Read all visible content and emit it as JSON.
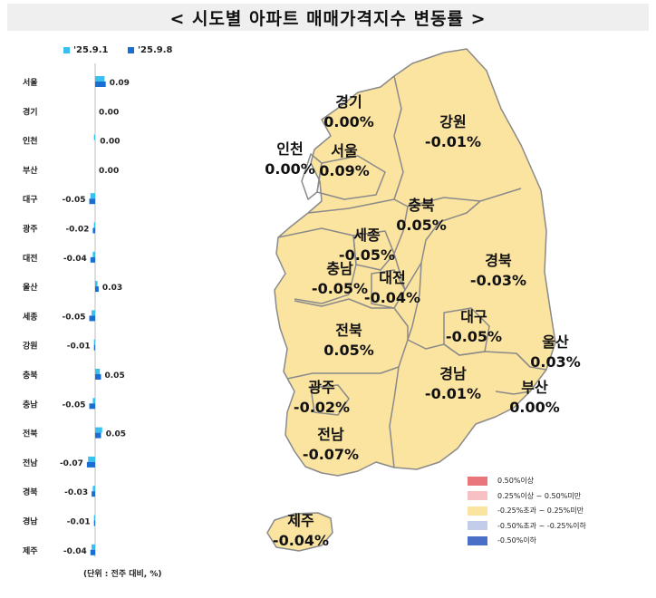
{
  "title": "< 시도별 아파트 매매가격지수 변동률 >",
  "unit_note": "(단위 : 전주 대비, %)",
  "colors": {
    "series1": "#39c0ef",
    "series2": "#1a6ed0",
    "map_fill": "#fbe3a0",
    "map_stroke": "#8a8a8a",
    "title_bg": "#efefef"
  },
  "chart_data": [
    {
      "type": "bar",
      "orientation": "horizontal",
      "categories": [
        "서울",
        "경기",
        "인천",
        "부산",
        "대구",
        "광주",
        "대전",
        "울산",
        "세종",
        "강원",
        "충북",
        "충남",
        "전북",
        "전남",
        "경북",
        "경남",
        "제주"
      ],
      "series": [
        {
          "name": "'25.9.1",
          "values": [
            0.08,
            0.0,
            -0.01,
            0.0,
            -0.04,
            -0.01,
            -0.02,
            0.02,
            -0.03,
            -0.01,
            0.04,
            -0.02,
            0.06,
            -0.06,
            -0.02,
            -0.01,
            -0.03
          ]
        },
        {
          "name": "'25.9.8",
          "values": [
            0.09,
            0.0,
            0.0,
            0.0,
            -0.05,
            -0.02,
            -0.04,
            0.03,
            -0.05,
            -0.01,
            0.05,
            -0.05,
            0.05,
            -0.07,
            -0.03,
            -0.01,
            -0.04
          ]
        }
      ],
      "data_labels": [
        "0.09",
        "0.00",
        "0.00",
        "0.00",
        "-0.05",
        "-0.02",
        "-0.04",
        "0.03",
        "-0.05",
        "-0.01",
        "0.05",
        "-0.05",
        "0.05",
        "-0.07",
        "-0.03",
        "-0.01",
        "-0.04"
      ]
    },
    {
      "type": "map",
      "regions": [
        {
          "name": "경기",
          "value": "0.00%"
        },
        {
          "name": "강원",
          "value": "-0.01%"
        },
        {
          "name": "인천",
          "value": "0.00%"
        },
        {
          "name": "서울",
          "value": "0.09%"
        },
        {
          "name": "충북",
          "value": "0.05%"
        },
        {
          "name": "세종",
          "value": "-0.05%"
        },
        {
          "name": "충남",
          "value": "-0.05%"
        },
        {
          "name": "대전",
          "value": "-0.04%"
        },
        {
          "name": "경북",
          "value": "-0.03%"
        },
        {
          "name": "대구",
          "value": "-0.05%"
        },
        {
          "name": "전북",
          "value": "0.05%"
        },
        {
          "name": "울산",
          "value": "0.03%"
        },
        {
          "name": "광주",
          "value": "-0.02%"
        },
        {
          "name": "경남",
          "value": "-0.01%"
        },
        {
          "name": "부산",
          "value": "0.00%"
        },
        {
          "name": "전남",
          "value": "-0.07%"
        },
        {
          "name": "제주",
          "value": "-0.04%"
        }
      ],
      "legend": [
        {
          "label": "0.50%이상",
          "color": "#e8767a"
        },
        {
          "label": "0.25%이상 ~ 0.50%미만",
          "color": "#f7c0c4"
        },
        {
          "label": "-0.25%초과 ~ 0.25%미만",
          "color": "#fbe3a0"
        },
        {
          "label": "-0.50%초과 ~ -0.25%이하",
          "color": "#c3cce8"
        },
        {
          "label": "-0.50%이하",
          "color": "#4a6fc7"
        }
      ]
    }
  ]
}
